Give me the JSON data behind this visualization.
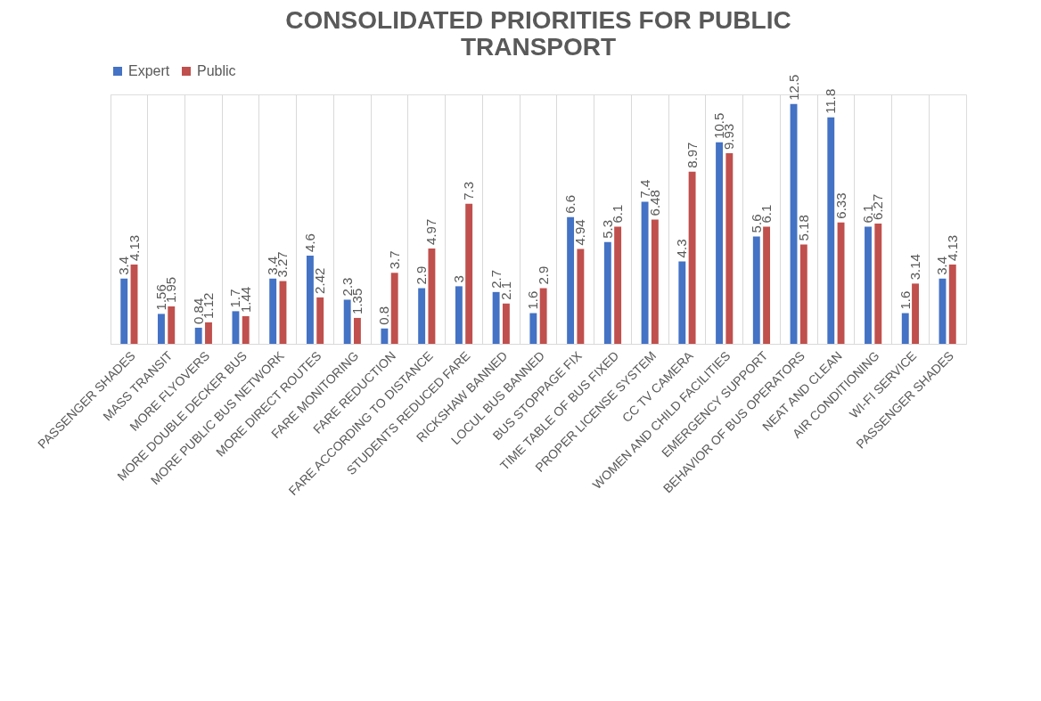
{
  "chart_data": {
    "type": "bar",
    "title": "CONSOLIDATED PRIORITIES FOR PUBLIC TRANSPORT",
    "categories": [
      "PASSENGER SHADES",
      "MASS TRANSIT",
      "MORE FLYOVERS",
      "MORE DOUBLE DECKER BUS",
      "MORE PUBLIC BUS NETWORK",
      "MORE DIRECT ROUTES",
      "FARE MONITORING",
      "FARE REDUCTION",
      "FARE ACCORDING TO DISTANCE",
      "STUDENTS REDUCED FARE",
      "RICKSHAW BANNED",
      "LOCUL BUS BANNED",
      "BUS STOPPAGE FIX",
      "TIME TABLE OF BUS FIXED",
      "PROPER LICENSE SYSTEM",
      "CC TV CAMERA",
      "WOMEN AND CHILD FACILITIES",
      "EMERGENCY SUPPORT",
      "BEHAVIOR OF BUS OPERATORS",
      "NEAT AND CLEAN",
      "AIR CONDITIONING",
      "WI-FI SERVICE",
      "PASSENGER SHADES"
    ],
    "series": [
      {
        "name": "Expert",
        "color": "#4472c4",
        "values": [
          3.4,
          1.56,
          0.84,
          1.7,
          3.4,
          4.6,
          2.3,
          0.8,
          2.9,
          3,
          2.7,
          1.6,
          6.6,
          5.3,
          7.4,
          4.3,
          10.5,
          5.6,
          12.5,
          11.8,
          6.1,
          1.6,
          3.4
        ]
      },
      {
        "name": "Public",
        "color": "#c0504d",
        "values": [
          4.13,
          1.95,
          1.12,
          1.44,
          3.27,
          2.42,
          1.35,
          3.7,
          4.97,
          7.3,
          2.1,
          2.9,
          4.94,
          6.1,
          6.48,
          8.97,
          9.93,
          6.1,
          5.18,
          6.33,
          6.27,
          3.14,
          4.13
        ]
      }
    ],
    "data_labels": true,
    "legend": "top",
    "grid": "x"
  }
}
